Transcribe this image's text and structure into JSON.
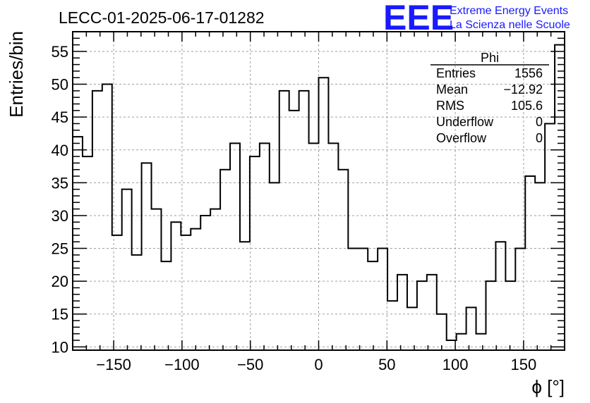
{
  "chart_data": {
    "type": "bar",
    "title": "LECC-01-2025-06-17-01282",
    "xlabel": "ϕ [°]",
    "ylabel": "Entries/bin",
    "xlim": [
      -180,
      180
    ],
    "ylim": [
      9.5,
      58
    ],
    "bin_edges_start": -180,
    "bin_width": 7.2,
    "values": [
      42,
      39,
      49,
      50,
      27,
      34,
      24,
      38,
      31,
      23,
      29,
      27,
      28,
      30,
      31,
      37,
      41,
      26,
      39,
      41,
      35,
      49,
      46,
      49,
      41,
      51,
      41,
      37,
      25,
      25,
      23,
      25,
      17,
      21,
      16,
      20,
      21,
      15,
      11,
      12,
      16,
      12,
      20,
      26,
      20,
      25,
      36,
      35,
      44,
      56
    ],
    "x_ticks": [
      -150,
      -100,
      -50,
      0,
      50,
      100,
      150
    ],
    "x_tick_labels": [
      "−150",
      "−100",
      "−50",
      "0",
      "50",
      "100",
      "150"
    ],
    "y_ticks": [
      10,
      15,
      20,
      25,
      30,
      35,
      40,
      45,
      50,
      55
    ],
    "y_tick_labels": [
      "10",
      "15",
      "20",
      "25",
      "30",
      "35",
      "40",
      "45",
      "50",
      "55"
    ],
    "grid": true,
    "stats_box": {
      "name": "Phi",
      "placement": "top-right",
      "rows": [
        {
          "label": "Entries",
          "value": "1556"
        },
        {
          "label": "Mean",
          "value": "−12.92"
        },
        {
          "label": "RMS",
          "value": "105.6"
        },
        {
          "label": "Underflow",
          "value": "0"
        },
        {
          "label": "Overflow",
          "value": "0"
        }
      ]
    }
  },
  "logo": {
    "mark": "EEE",
    "line1": "Extreme Energy Events",
    "line2": "La Scienza nelle Scuole",
    "color": "#1a1aff"
  },
  "colors": {
    "line": "#000000",
    "grid": "#a0a0a0"
  }
}
